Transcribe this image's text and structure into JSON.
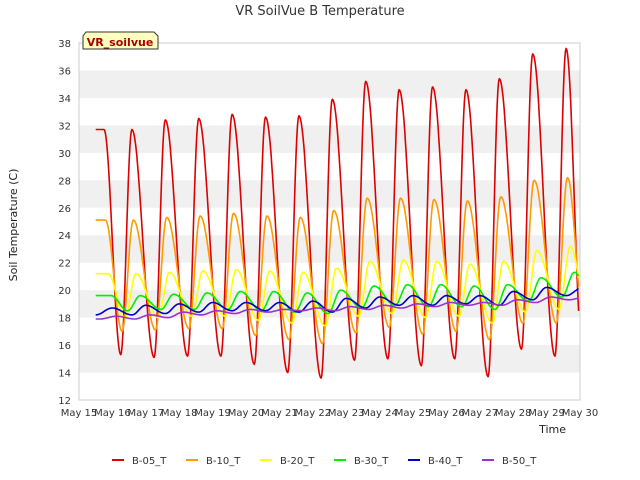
{
  "chart_data": {
    "type": "line",
    "title": "VR SoilVue B Temperature",
    "xlabel": "Time",
    "ylabel": "Soil Temperature (C)",
    "badge": "VR_soilvue",
    "ylim": [
      12,
      38
    ],
    "xlim": [
      "2024-05-15",
      "2024-05-30"
    ],
    "yticks": [
      12,
      14,
      16,
      18,
      20,
      22,
      24,
      26,
      28,
      30,
      32,
      34,
      36,
      38
    ],
    "xticks": [
      "May 15",
      "May 16",
      "May 17",
      "May 18",
      "May 19",
      "May 20",
      "May 21",
      "May 22",
      "May 23",
      "May 24",
      "May 25",
      "May 26",
      "May 27",
      "May 28",
      "May 29",
      "May 30"
    ],
    "grid": "horizontal bands",
    "legend_position": "bottom",
    "data_start": "2024-05-15 12:00",
    "data_end": "2024-05-29 23:00",
    "series": [
      {
        "name": "B-05_T",
        "color": "#dd0000",
        "daily_peaks": [
          31.7,
          32.4,
          32.5,
          32.8,
          32.6,
          32.7,
          33.9,
          35.2,
          34.6,
          34.8,
          34.6,
          35.4,
          37.2,
          37.6
        ],
        "daily_troughs": [
          15.3,
          15.1,
          15.2,
          15.2,
          14.6,
          14.0,
          13.6,
          14.9,
          15.0,
          14.5,
          15.0,
          13.7,
          15.7,
          15.2
        ],
        "peak_hour": 14,
        "trough_hour": 6
      },
      {
        "name": "B-10_T",
        "color": "#ff9900",
        "daily_peaks": [
          25.1,
          25.3,
          25.4,
          25.6,
          25.4,
          25.3,
          25.8,
          26.7,
          26.7,
          26.6,
          26.5,
          26.8,
          28.0,
          28.2
        ],
        "daily_troughs": [
          17.0,
          17.1,
          17.2,
          17.2,
          16.7,
          16.4,
          16.1,
          16.9,
          17.3,
          16.8,
          17.0,
          16.4,
          17.6,
          17.6
        ],
        "peak_hour": 15,
        "trough_hour": 7
      },
      {
        "name": "B-20_T",
        "color": "#ffff00",
        "daily_peaks": [
          21.2,
          21.3,
          21.4,
          21.5,
          21.4,
          21.3,
          21.6,
          22.1,
          22.2,
          22.1,
          21.9,
          22.1,
          22.9,
          23.2
        ],
        "daily_troughs": [
          18.0,
          18.0,
          18.1,
          18.1,
          17.8,
          17.6,
          17.4,
          18.1,
          18.3,
          18.0,
          18.1,
          17.6,
          18.4,
          18.6
        ],
        "peak_hour": 17,
        "trough_hour": 9
      },
      {
        "name": "B-30_T",
        "color": "#00ee00",
        "daily_peaks": [
          19.6,
          19.7,
          19.8,
          19.9,
          19.9,
          19.8,
          20.0,
          20.3,
          20.4,
          20.4,
          20.3,
          20.4,
          20.9,
          21.3
        ],
        "daily_troughs": [
          18.5,
          18.6,
          18.6,
          18.6,
          18.5,
          18.4,
          18.3,
          18.7,
          18.9,
          18.8,
          18.8,
          18.6,
          19.2,
          19.5
        ],
        "peak_hour": 20,
        "trough_hour": 11
      },
      {
        "name": "B-40_T",
        "color": "#0000cc",
        "daily_peaks": [
          18.7,
          18.9,
          19.0,
          19.1,
          19.1,
          19.1,
          19.2,
          19.4,
          19.5,
          19.6,
          19.6,
          19.6,
          19.9,
          20.2
        ],
        "daily_troughs": [
          18.2,
          18.3,
          18.4,
          18.5,
          18.5,
          18.4,
          18.4,
          18.7,
          18.9,
          18.9,
          19.0,
          18.9,
          19.3,
          19.6
        ],
        "peak_hour": 0,
        "trough_hour": 14
      },
      {
        "name": "B-50_T",
        "color": "#9933cc",
        "daily_peaks": [
          18.1,
          18.2,
          18.4,
          18.5,
          18.6,
          18.6,
          18.7,
          18.8,
          18.9,
          19.0,
          19.1,
          19.1,
          19.3,
          19.5
        ],
        "daily_troughs": [
          17.9,
          18.0,
          18.2,
          18.3,
          18.4,
          18.5,
          18.5,
          18.6,
          18.7,
          18.8,
          18.9,
          18.9,
          19.1,
          19.3
        ],
        "peak_hour": 3,
        "trough_hour": 16
      }
    ]
  }
}
